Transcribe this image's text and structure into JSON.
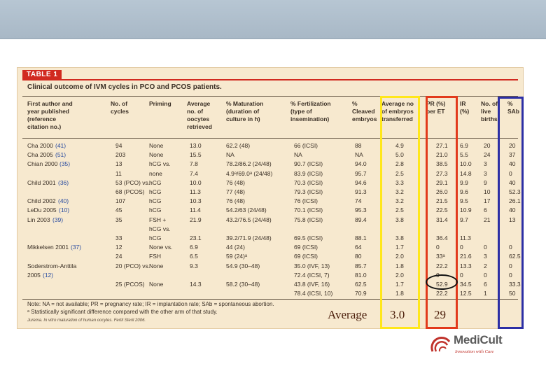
{
  "slide": {
    "table": {
      "tag": "TABLE 1",
      "caption": "Clinical outcome of IVM cycles in PCO and PCOS patients.",
      "headers": [
        "First author and\nyear published\n(reference\ncitation no.)",
        "No. of\ncycles",
        "Priming",
        "Average\nno. of\noocytes\nretrieved",
        "% Maturation\n(duration of\nculture in h)",
        "% Fertilization\n(type of\ninsemination)",
        "%\nCleaved\nembryos",
        "Average no\nof embryos\ntransferred",
        "PR (%)\nper ET",
        "IR\n(%)",
        "No. of\nlive\nbirths",
        "%\nSAb"
      ],
      "rows": [
        {
          "author": "Cha 2000",
          "ref": "(41)",
          "cycles": "94",
          "priming": "None",
          "oocytes": "13.0",
          "maturation": "62.2 (48)",
          "fertilization": "66 (ICSI)",
          "cleaved": "88",
          "embryos": "4.9",
          "pr": "27.1",
          "ir": "6.9",
          "births": "20",
          "sab": "20"
        },
        {
          "author": "Cha 2005",
          "ref": "(51)",
          "cycles": "203",
          "priming": "None",
          "oocytes": "15.5",
          "maturation": "NA",
          "fertilization": "NA",
          "cleaved": "NA",
          "embryos": "5.0",
          "pr": "21.0",
          "ir": "5.5",
          "births": "24",
          "sab": "37"
        },
        {
          "author": "Chian 2000",
          "ref": "(35)",
          "cycles": "13",
          "priming": "hCG vs.",
          "oocytes": "7.8",
          "maturation": "78.2/86.2 (24/48)",
          "fertilization": "90.7 (ICSI)",
          "cleaved": "94.0",
          "embryos": "2.8",
          "pr": "38.5",
          "ir": "10.0",
          "births": "3",
          "sab": "40"
        },
        {
          "author": "",
          "ref": "",
          "cycles": "11",
          "priming": "none",
          "oocytes": "7.4",
          "maturation": "4.9ᵃ/69.0ᵃ (24/48)",
          "fertilization": "83.9 (ICSI)",
          "cleaved": "95.7",
          "embryos": "2.5",
          "pr": "27.3",
          "ir": "14.8",
          "births": "3",
          "sab": "0"
        },
        {
          "author": "Child 2001",
          "ref": "(36)",
          "cycles": "53 (PCO) vs.",
          "priming": "hCG",
          "oocytes": "10.0",
          "maturation": "76 (48)",
          "fertilization": "70.3 (ICSI)",
          "cleaved": "94.6",
          "embryos": "3.3",
          "pr": "29.1",
          "ir": "9.9",
          "births": "9",
          "sab": "40"
        },
        {
          "author": "",
          "ref": "",
          "cycles": "68 (PCOS)",
          "priming": "hCG",
          "oocytes": "11.3",
          "maturation": "77 (48)",
          "fertilization": "79.3 (ICSI)",
          "cleaved": "91.3",
          "embryos": "3.2",
          "pr": "26.0",
          "ir": "9.6",
          "births": "10",
          "sab": "52.3"
        },
        {
          "author": "Child 2002",
          "ref": "(40)",
          "cycles": "107",
          "priming": "hCG",
          "oocytes": "10.3",
          "maturation": "76 (48)",
          "fertilization": "76 (ICSI)",
          "cleaved": "74",
          "embryos": "3.2",
          "pr": "21.5",
          "ir": "9.5",
          "births": "17",
          "sab": "26.1"
        },
        {
          "author": "LeDu 2005",
          "ref": "(10)",
          "cycles": "45",
          "priming": "hCG",
          "oocytes": "11.4",
          "maturation": "54.2/63 (24/48)",
          "fertilization": "70.1 (ICSI)",
          "cleaved": "95.3",
          "embryos": "2.5",
          "pr": "22.5",
          "ir": "10.9",
          "births": "6",
          "sab": "40"
        },
        {
          "author": "Lin 2003",
          "ref": "(39)",
          "cycles": "35",
          "priming": "FSH +",
          "oocytes": "21.9",
          "maturation": "43.2/76.5 (24/48)",
          "fertilization": "75.8 (ICSI)",
          "cleaved": "89.4",
          "embryos": "3.8",
          "pr": "31.4",
          "ir": "9.7",
          "births": "21",
          "sab": "13"
        },
        {
          "author": "",
          "ref": "",
          "cycles": "",
          "priming": "hCG vs.",
          "oocytes": "",
          "maturation": "",
          "fertilization": "",
          "cleaved": "",
          "embryos": "",
          "pr": "",
          "ir": "",
          "births": "",
          "sab": ""
        },
        {
          "author": "",
          "ref": "",
          "cycles": "33",
          "priming": "hCG",
          "oocytes": "23.1",
          "maturation": "39.2/71.9 (24/48)",
          "fertilization": "69.5 (ICSI)",
          "cleaved": "88.1",
          "embryos": "3.8",
          "pr": "36.4",
          "ir": "11.3",
          "births": "",
          "sab": ""
        },
        {
          "author": "Mikkelsen 2001",
          "ref": "(37)",
          "cycles": "12",
          "priming": "None vs.",
          "oocytes": "6.9",
          "maturation": "44 (24)",
          "fertilization": "69 (ICSI)",
          "cleaved": "64",
          "embryos": "1.7",
          "pr": "0",
          "ir": "0",
          "births": "0",
          "sab": "0"
        },
        {
          "author": "",
          "ref": "",
          "cycles": "24",
          "priming": "FSH",
          "oocytes": "6.5",
          "maturation": "59 (24)ᵃ",
          "fertilization": "69 (ICSI)",
          "cleaved": "80",
          "embryos": "2.0",
          "pr": "33ᵃ",
          "ir": "21.6",
          "births": "3",
          "sab": "62.5"
        },
        {
          "author": "Soderstrom-Anttila",
          "ref": "",
          "cycles": "20 (PCO) vs.",
          "priming": "None",
          "oocytes": "9.3",
          "maturation": "54.9 (30–48)",
          "fertilization": "35.0 (IVF, 13)",
          "cleaved": "85.7",
          "embryos": "1.8",
          "pr": "22.2",
          "ir": "13.3",
          "births": "2",
          "sab": "0"
        },
        {
          "author": "2005",
          "ref": "(12)",
          "cycles": "",
          "priming": "",
          "oocytes": "",
          "maturation": "",
          "fertilization": "72.4 (ICSI, 7)",
          "cleaved": "81.0",
          "embryos": "2.0",
          "pr": "0",
          "ir": "0",
          "births": "0",
          "sab": "0"
        },
        {
          "author": "",
          "ref": "",
          "cycles": "25 (PCOS)",
          "priming": "None",
          "oocytes": "14.3",
          "maturation": "58.2 (30–48)",
          "fertilization": "43.8 (IVF, 16)",
          "cleaved": "62.5",
          "embryos": "1.7",
          "pr": "52.9",
          "ir": "34.5",
          "births": "6",
          "sab": "33.3"
        },
        {
          "author": "",
          "ref": "",
          "cycles": "",
          "priming": "",
          "oocytes": "",
          "maturation": "",
          "fertilization": "78.4 (ICSI, 10)",
          "cleaved": "70.9",
          "embryos": "1.8",
          "pr": "22.2",
          "ir": "12.5",
          "births": "1",
          "sab": "50"
        }
      ],
      "note_line1": "Note: NA = not available; PR = pregnancy rate; IR = implantation rate; SAb = spontaneous abortion.",
      "note_line2": "ᵃ Statistically significant difference compared with the other arm of that study.",
      "source": "Jurema. In vitro maturation of human oocytes. Fertil Steril 2006."
    },
    "annotations": {
      "average_label": "Average",
      "average_embryos": "3.0",
      "average_pr": "29",
      "colors": {
        "yellow": "#ffe71a",
        "red": "#e23a1c",
        "blue": "#2c2fa5"
      }
    },
    "logo": {
      "name": "MediCult",
      "tagline": "Innovation with Care"
    }
  }
}
